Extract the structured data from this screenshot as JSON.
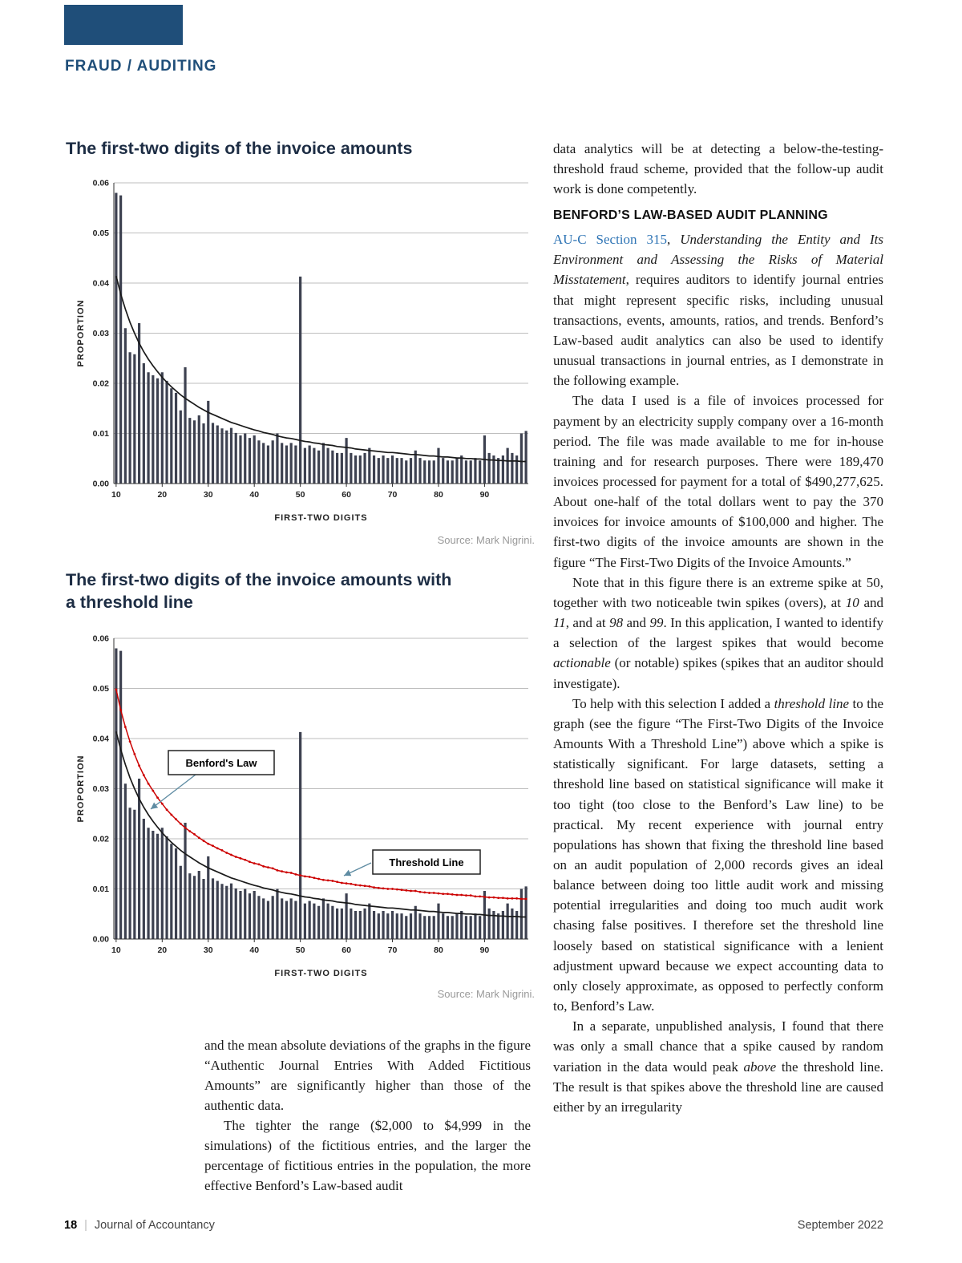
{
  "kicker": "FRAUD / AUDITING",
  "figure1": {
    "title": "The first-two digits of the invoice amounts",
    "source": "Source: Mark Nigrini."
  },
  "figure2": {
    "title": "The first-two digits of the invoice amounts with a threshold line",
    "source": "Source: Mark Nigrini."
  },
  "chart_data": [
    {
      "type": "bar",
      "title": "The first-two digits of the invoice amounts",
      "xlabel": "FIRST-TWO DIGITS",
      "ylabel": "PROPORTION",
      "x_start": 10,
      "x_end": 99,
      "xticks": [
        10,
        20,
        30,
        40,
        50,
        60,
        70,
        80,
        90
      ],
      "ylim": [
        0,
        0.06
      ],
      "yticks": [
        "0.00",
        "0.01",
        "0.02",
        "0.03",
        "0.04",
        "0.05",
        "0.06"
      ],
      "grid": true,
      "bar_color": "#3d4150",
      "bars": [
        0.058,
        0.0575,
        0.031,
        0.0262,
        0.0258,
        0.032,
        0.024,
        0.0222,
        0.0216,
        0.021,
        0.0222,
        0.0205,
        0.019,
        0.0181,
        0.0146,
        0.0232,
        0.0131,
        0.0126,
        0.0136,
        0.012,
        0.0165,
        0.0121,
        0.0116,
        0.011,
        0.0106,
        0.0111,
        0.0101,
        0.0096,
        0.01,
        0.0091,
        0.0096,
        0.0086,
        0.0081,
        0.0076,
        0.0086,
        0.01,
        0.0081,
        0.0076,
        0.0081,
        0.0076,
        0.0413,
        0.0071,
        0.0076,
        0.0071,
        0.0066,
        0.0081,
        0.0071,
        0.0066,
        0.0061,
        0.0061,
        0.0091,
        0.0061,
        0.0056,
        0.0056,
        0.0061,
        0.0071,
        0.0056,
        0.0051,
        0.0056,
        0.0051,
        0.0056,
        0.0051,
        0.0051,
        0.0046,
        0.0051,
        0.0066,
        0.0051,
        0.0046,
        0.0046,
        0.0046,
        0.0071,
        0.0051,
        0.0046,
        0.0046,
        0.0051,
        0.0056,
        0.0046,
        0.0046,
        0.0051,
        0.0046,
        0.0096,
        0.0061,
        0.0056,
        0.0051,
        0.0056,
        0.0071,
        0.0061,
        0.0056,
        0.01,
        0.0105
      ],
      "benford_line": {
        "name": "Benford's Law",
        "color": "#1a1a1a",
        "values": [
          0.0414,
          0.0378,
          0.0348,
          0.0322,
          0.03,
          0.028,
          0.0263,
          0.0248,
          0.0235,
          0.0223,
          0.0212,
          0.0202,
          0.0193,
          0.0185,
          0.0177,
          0.017,
          0.0164,
          0.0158,
          0.0152,
          0.0147,
          0.0142,
          0.0138,
          0.0134,
          0.013,
          0.0126,
          0.0122,
          0.0119,
          0.0116,
          0.0113,
          0.011,
          0.0107,
          0.0105,
          0.0102,
          0.01,
          0.0098,
          0.0095,
          0.0093,
          0.0091,
          0.009,
          0.0088,
          0.0086,
          0.0084,
          0.0083,
          0.0081,
          0.008,
          0.0078,
          0.0077,
          0.0076,
          0.0074,
          0.0073,
          0.0072,
          0.0071,
          0.0069,
          0.0068,
          0.0067,
          0.0066,
          0.0065,
          0.0064,
          0.0063,
          0.0062,
          0.0062,
          0.0061,
          0.006,
          0.0059,
          0.0058,
          0.0058,
          0.0057,
          0.0056,
          0.0055,
          0.0055,
          0.0054,
          0.0053,
          0.0053,
          0.0052,
          0.0051,
          0.0051,
          0.005,
          0.005,
          0.0049,
          0.0049,
          0.0048,
          0.0047,
          0.0047,
          0.0046,
          0.0046,
          0.0045,
          0.0045,
          0.0045,
          0.0044,
          0.0044
        ]
      }
    },
    {
      "type": "bar",
      "title": "The first-two digits of the invoice amounts with a threshold line",
      "xlabel": "FIRST-TWO DIGITS",
      "ylabel": "PROPORTION",
      "x_start": 10,
      "x_end": 99,
      "xticks": [
        10,
        20,
        30,
        40,
        50,
        60,
        70,
        80,
        90
      ],
      "ylim": [
        0,
        0.06
      ],
      "yticks": [
        "0.00",
        "0.01",
        "0.02",
        "0.03",
        "0.04",
        "0.05",
        "0.06"
      ],
      "grid": true,
      "bar_color": "#3d4150",
      "arrow_color": "#5f8ca3",
      "bars": [
        0.058,
        0.0575,
        0.031,
        0.0262,
        0.0258,
        0.032,
        0.024,
        0.0222,
        0.0216,
        0.021,
        0.0222,
        0.0205,
        0.019,
        0.0181,
        0.0146,
        0.0232,
        0.0131,
        0.0126,
        0.0136,
        0.012,
        0.0165,
        0.0121,
        0.0116,
        0.011,
        0.0106,
        0.0111,
        0.0101,
        0.0096,
        0.01,
        0.0091,
        0.0096,
        0.0086,
        0.0081,
        0.0076,
        0.0086,
        0.01,
        0.0081,
        0.0076,
        0.0081,
        0.0076,
        0.0413,
        0.0071,
        0.0076,
        0.0071,
        0.0066,
        0.0081,
        0.0071,
        0.0066,
        0.0061,
        0.0061,
        0.0091,
        0.0061,
        0.0056,
        0.0056,
        0.0061,
        0.0071,
        0.0056,
        0.0051,
        0.0056,
        0.0051,
        0.0056,
        0.0051,
        0.0051,
        0.0046,
        0.0051,
        0.0066,
        0.0051,
        0.0046,
        0.0046,
        0.0046,
        0.0071,
        0.0051,
        0.0046,
        0.0046,
        0.0051,
        0.0056,
        0.0046,
        0.0046,
        0.0051,
        0.0046,
        0.0096,
        0.0061,
        0.0056,
        0.0051,
        0.0056,
        0.0071,
        0.0061,
        0.0056,
        0.01,
        0.0105
      ],
      "benford_line": {
        "name": "Benford's Law",
        "color": "#1a1a1a",
        "values": [
          0.0414,
          0.0378,
          0.0348,
          0.0322,
          0.03,
          0.028,
          0.0263,
          0.0248,
          0.0235,
          0.0223,
          0.0212,
          0.0202,
          0.0193,
          0.0185,
          0.0177,
          0.017,
          0.0164,
          0.0158,
          0.0152,
          0.0147,
          0.0142,
          0.0138,
          0.0134,
          0.013,
          0.0126,
          0.0122,
          0.0119,
          0.0116,
          0.0113,
          0.011,
          0.0107,
          0.0105,
          0.0102,
          0.01,
          0.0098,
          0.0095,
          0.0093,
          0.0091,
          0.009,
          0.0088,
          0.0086,
          0.0084,
          0.0083,
          0.0081,
          0.008,
          0.0078,
          0.0077,
          0.0076,
          0.0074,
          0.0073,
          0.0072,
          0.0071,
          0.0069,
          0.0068,
          0.0067,
          0.0066,
          0.0065,
          0.0064,
          0.0063,
          0.0062,
          0.0062,
          0.0061,
          0.006,
          0.0059,
          0.0058,
          0.0058,
          0.0057,
          0.0056,
          0.0055,
          0.0055,
          0.0054,
          0.0053,
          0.0053,
          0.0052,
          0.0051,
          0.0051,
          0.005,
          0.005,
          0.0049,
          0.0049,
          0.0048,
          0.0047,
          0.0047,
          0.0046,
          0.0046,
          0.0045,
          0.0045,
          0.0045,
          0.0044,
          0.0044
        ]
      },
      "threshold_line": {
        "name": "Threshold line",
        "color": "#cc0000",
        "values": [
          0.0498,
          0.0457,
          0.0423,
          0.0394,
          0.0369,
          0.0346,
          0.0327,
          0.031,
          0.0296,
          0.0282,
          0.027,
          0.0258,
          0.0248,
          0.0239,
          0.023,
          0.0222,
          0.0215,
          0.0209,
          0.0202,
          0.0196,
          0.019,
          0.0186,
          0.0181,
          0.0177,
          0.0172,
          0.0168,
          0.0164,
          0.0161,
          0.0158,
          0.0154,
          0.0151,
          0.0149,
          0.0145,
          0.0143,
          0.0141,
          0.0137,
          0.0135,
          0.0133,
          0.0132,
          0.0129,
          0.0127,
          0.0125,
          0.0124,
          0.0122,
          0.012,
          0.0118,
          0.0117,
          0.0116,
          0.0114,
          0.0112,
          0.0111,
          0.011,
          0.0108,
          0.0107,
          0.0106,
          0.0105,
          0.0103,
          0.0102,
          0.0101,
          0.01,
          0.01,
          0.0099,
          0.0098,
          0.0097,
          0.0096,
          0.0096,
          0.0094,
          0.0093,
          0.0092,
          0.0092,
          0.0091,
          0.009,
          0.009,
          0.0089,
          0.0088,
          0.0088,
          0.0087,
          0.0087,
          0.0085,
          0.0085,
          0.0084,
          0.0083,
          0.0083,
          0.0082,
          0.0082,
          0.0081,
          0.0081,
          0.0081,
          0.008,
          0.008
        ]
      },
      "annotations": [
        {
          "label": "Benford's Law"
        },
        {
          "label": "Threshold Line"
        }
      ]
    }
  ],
  "left_column": {
    "paragraphs": [
      {
        "segments": [
          {
            "t": "and the mean absolute deviations of the graphs in the figure “Authentic Journal Entries With Added Fictitious Amounts” are significantly higher than those of the authentic data."
          }
        ]
      },
      {
        "segments": [
          {
            "t": "The tighter the range ($2,000 to $4,999 in the simulations) of the fictitious entries, and the larger the percentage of fictitious entries in the population, the more effective Benford’s Law-based audit"
          }
        ]
      }
    ]
  },
  "right_column": {
    "heading": "BENFORD’S LAW-BASED AUDIT PLANNING",
    "paragraphs": [
      {
        "segments": [
          {
            "t": "data analytics will be at detecting a below-the-testing-threshold fraud scheme, provided that the follow-up audit work is done competently."
          }
        ]
      },
      {
        "segments": [
          {
            "t": "AU-C Section 315",
            "s": "link"
          },
          {
            "t": ", "
          },
          {
            "t": "Understanding the Entity and Its Environment and Assessing the Risks of Material Misstatement",
            "s": "i"
          },
          {
            "t": ", requires auditors to identify journal entries that might represent specific risks, including unusual transactions, events, amounts, ratios, and trends. Benford’s Law-based audit analytics can also be used to identify unusual transactions in journal entries, as I demonstrate in the following example."
          }
        ]
      },
      {
        "segments": [
          {
            "t": "The data I used is a file of invoices processed for payment by an electricity supply company over a 16-month period. The file was made available to me for in-house training and for research purposes. There were 189,470 invoices processed for payment for a total of $490,277,625. About one-half of the total dollars went to pay the 370 invoices for invoice amounts of $100,000 and higher. The first-two digits of the invoice amounts are shown in the figure “The First-Two Digits of the Invoice Amounts.”"
          }
        ]
      },
      {
        "segments": [
          {
            "t": "Note that in this figure there is an extreme spike at 50, together with two noticeable twin spikes (overs), at "
          },
          {
            "t": "10",
            "s": "i"
          },
          {
            "t": " and "
          },
          {
            "t": "11",
            "s": "i"
          },
          {
            "t": ", and at "
          },
          {
            "t": "98",
            "s": "i"
          },
          {
            "t": " and "
          },
          {
            "t": "99",
            "s": "i"
          },
          {
            "t": ". In this application, I wanted to identify a selection of the largest spikes that would become "
          },
          {
            "t": "actionable",
            "s": "i"
          },
          {
            "t": " (or notable) spikes (spikes that an auditor should investigate)."
          }
        ]
      },
      {
        "segments": [
          {
            "t": "To help with this selection I added a "
          },
          {
            "t": "threshold line",
            "s": "i"
          },
          {
            "t": " to the graph (see the figure “The First-Two Digits of the Invoice Amounts With a Threshold Line”) above which a spike is statistically significant. For large datasets, setting a threshold line based on statistical significance will make it too tight (too close to the Benford’s Law line) to be practical. My recent experience with journal entry populations has shown that fixing the threshold line based on an audit population of 2,000 records gives an ideal balance between doing too little audit work and missing potential irregularities and doing too much audit work chasing false positives. I therefore set the threshold line loosely based on statistical significance with a lenient adjustment upward because we expect accounting data to only closely approximate, as opposed to perfectly conform to, Benford’s Law."
          }
        ]
      },
      {
        "segments": [
          {
            "t": "In a separate, unpublished analysis, I found that there was only a small chance that a spike caused by random variation in the data would peak "
          },
          {
            "t": "above",
            "s": "i"
          },
          {
            "t": " the threshold line. The result is that spikes above the threshold line are caused either by an irregularity"
          }
        ]
      }
    ]
  },
  "footer": {
    "page_number": "18",
    "divider": "|",
    "journal": "Journal of Accountancy",
    "issue": "September 2022"
  },
  "colors": {
    "brand_navy": "#1f4e79",
    "link_blue": "#2e74b5",
    "threshold_red": "#cc0000",
    "bar": "#3d4150"
  }
}
